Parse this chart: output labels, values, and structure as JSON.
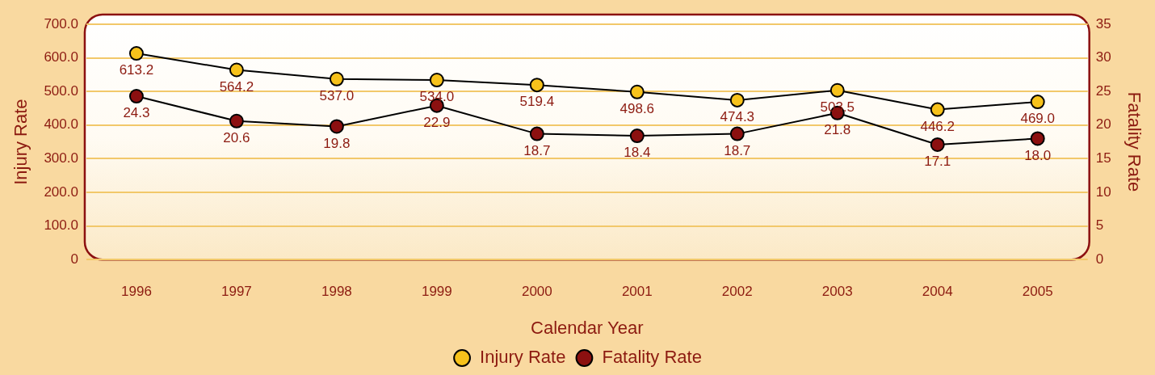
{
  "chart_data": {
    "type": "line",
    "xlabel": "Calendar Year",
    "ylabel": "Injury Rate",
    "y2label": "Fatality Rate",
    "categories": [
      "1996",
      "1997",
      "1998",
      "1999",
      "2000",
      "2001",
      "2002",
      "2003",
      "2004",
      "2005"
    ],
    "series": [
      {
        "name": "Injury Rate",
        "color": "#f7c21b",
        "values": [
          613.2,
          564.2,
          537.0,
          534.0,
          519.4,
          498.6,
          474.3,
          503.5,
          446.2,
          469.0
        ],
        "value_labels": [
          "613.2",
          "564.2",
          "537.0",
          "534.0",
          "519.4",
          "498.6",
          "474.3",
          "503.5",
          "446.2",
          "469.0"
        ]
      },
      {
        "name": "Fatality Rate",
        "color": "#8c1010",
        "axis": "y2",
        "values": [
          24.3,
          20.6,
          19.8,
          22.9,
          18.7,
          18.4,
          18.7,
          21.8,
          17.1,
          18.0
        ],
        "value_labels": [
          "24.3",
          "20.6",
          "19.8",
          "22.9",
          "18.7",
          "18.4",
          "18.7",
          "21.8",
          "17.1",
          "18.0"
        ]
      }
    ],
    "ylim": [
      0,
      700
    ],
    "yticks": [
      {
        "value": 0,
        "label": "0"
      },
      {
        "value": 100,
        "label": "100.0"
      },
      {
        "value": 200,
        "label": "200.0"
      },
      {
        "value": 300,
        "label": "300.0"
      },
      {
        "value": 400,
        "label": "400.0"
      },
      {
        "value": 500,
        "label": "500.0"
      },
      {
        "value": 600,
        "label": "600.0"
      },
      {
        "value": 700,
        "label": "700.0"
      }
    ],
    "y2lim": [
      0,
      35
    ],
    "y2ticks": [
      0,
      5,
      10,
      15,
      20,
      25,
      30,
      35
    ],
    "grid": "y",
    "legend": "bottom",
    "marker": "circle",
    "line_style": "solid"
  }
}
